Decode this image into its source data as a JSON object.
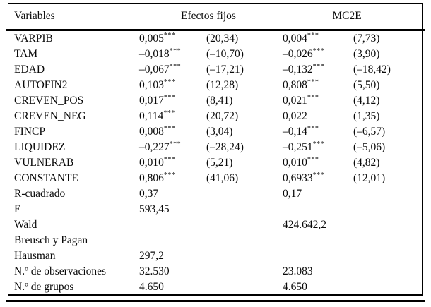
{
  "table": {
    "header": {
      "variables": "Variables",
      "group1": "Efectos fijos",
      "group2": "MC2E"
    },
    "rows": [
      {
        "label": "VARPIB",
        "c1": "0,005",
        "s1": "***",
        "t1": "(20,34)",
        "c2": "0,004",
        "s2": "***",
        "t2": "(7,73)"
      },
      {
        "label": "TAM",
        "c1": "–0,018",
        "s1": "***",
        "t1": "(–10,70)",
        "c2": "–0,026",
        "s2": "***",
        "t2": "(3,90)"
      },
      {
        "label": "EDAD",
        "c1": "–0,067",
        "s1": "***",
        "t1": "(–17,21)",
        "c2": "–0,132",
        "s2": "***",
        "t2": "(–18,42)"
      },
      {
        "label": "AUTOFIN2",
        "c1": "0,103",
        "s1": "***",
        "t1": "(12,28)",
        "c2": "0,808",
        "s2": "***",
        "t2": "(5,50)"
      },
      {
        "label": "CREVEN_POS",
        "c1": "0,017",
        "s1": "***",
        "t1": "(8,41)",
        "c2": "0,021",
        "s2": "***",
        "t2": "(4,12)"
      },
      {
        "label": "CREVEN_NEG",
        "c1": "0,114",
        "s1": "***",
        "t1": "(20,72)",
        "c2": "0,022",
        "s2": "",
        "t2": "(1,35)"
      },
      {
        "label": "FINCP",
        "c1": "0,008",
        "s1": "***",
        "t1": "(3,04)",
        "c2": "–0,14",
        "s2": "***",
        "t2": "(–6,57)"
      },
      {
        "label": "LIQUIDEZ",
        "c1": "–0,227",
        "s1": "***",
        "t1": "(–28,24)",
        "c2": "–0,251",
        "s2": "***",
        "t2": "(–5,06)"
      },
      {
        "label": "VULNERAB",
        "c1": "0,010",
        "s1": "***",
        "t1": "(5,21)",
        "c2": "0,010",
        "s2": "***",
        "t2": "(4,82)"
      },
      {
        "label": "CONSTANTE",
        "c1": "0,806",
        "s1": "***",
        "t1": "(41,06)",
        "c2": "0,6933",
        "s2": "***",
        "t2": "(12,01)"
      },
      {
        "label": "R-cuadrado",
        "c1": "0,37",
        "s1": "",
        "t1": "",
        "c2": "0,17",
        "s2": "",
        "t2": ""
      },
      {
        "label": "F",
        "c1": "593,45",
        "s1": "",
        "t1": "",
        "c2": "",
        "s2": "",
        "t2": ""
      },
      {
        "label": "Wald",
        "c1": "",
        "s1": "",
        "t1": "",
        "c2": "424.642,2",
        "s2": "",
        "t2": ""
      },
      {
        "label": "Breusch y Pagan",
        "c1": "",
        "s1": "",
        "t1": "",
        "c2": "",
        "s2": "",
        "t2": ""
      },
      {
        "label": "Hausman",
        "c1": "297,2",
        "s1": "",
        "t1": "",
        "c2": "",
        "s2": "",
        "t2": ""
      },
      {
        "label": "N.º de observaciones",
        "c1": "32.530",
        "s1": "",
        "t1": "",
        "c2": "23.083",
        "s2": "",
        "t2": ""
      },
      {
        "label": "N.º de grupos",
        "c1": "4.650",
        "s1": "",
        "t1": "",
        "c2": "4.650",
        "s2": "",
        "t2": ""
      }
    ]
  }
}
